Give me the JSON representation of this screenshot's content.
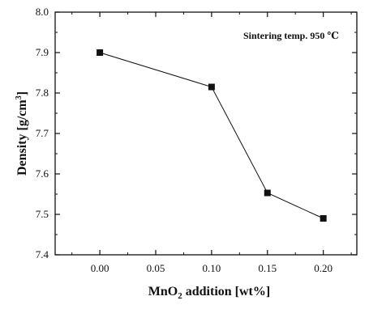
{
  "chart_data": {
    "type": "line",
    "title": "",
    "xlabel": {
      "prefix": "MnO",
      "subscript": "2",
      "suffix": " addition [wt%]"
    },
    "ylabel": {
      "main": "Density [g/cm",
      "superscript": "3",
      "close": "]"
    },
    "annotation": "Sintering temp. 950 ℃",
    "xlim": [
      -0.04,
      0.23
    ],
    "ylim": [
      7.4,
      8.0
    ],
    "x_ticks": [
      0.0,
      0.05,
      0.1,
      0.15,
      0.2
    ],
    "x_tick_labels": [
      "0.00",
      "0.05",
      "0.10",
      "0.15",
      "0.20"
    ],
    "y_ticks": [
      7.4,
      7.5,
      7.6,
      7.7,
      7.8,
      7.9,
      8.0
    ],
    "y_tick_labels": [
      "7.4",
      "7.5",
      "7.6",
      "7.7",
      "7.8",
      "7.9",
      "8.0"
    ],
    "grid": false,
    "series": [
      {
        "x": [
          0.0,
          0.1,
          0.15,
          0.2
        ],
        "values": [
          7.9,
          7.815,
          7.553,
          7.49
        ],
        "marker": "square",
        "color": "#111111"
      }
    ]
  }
}
